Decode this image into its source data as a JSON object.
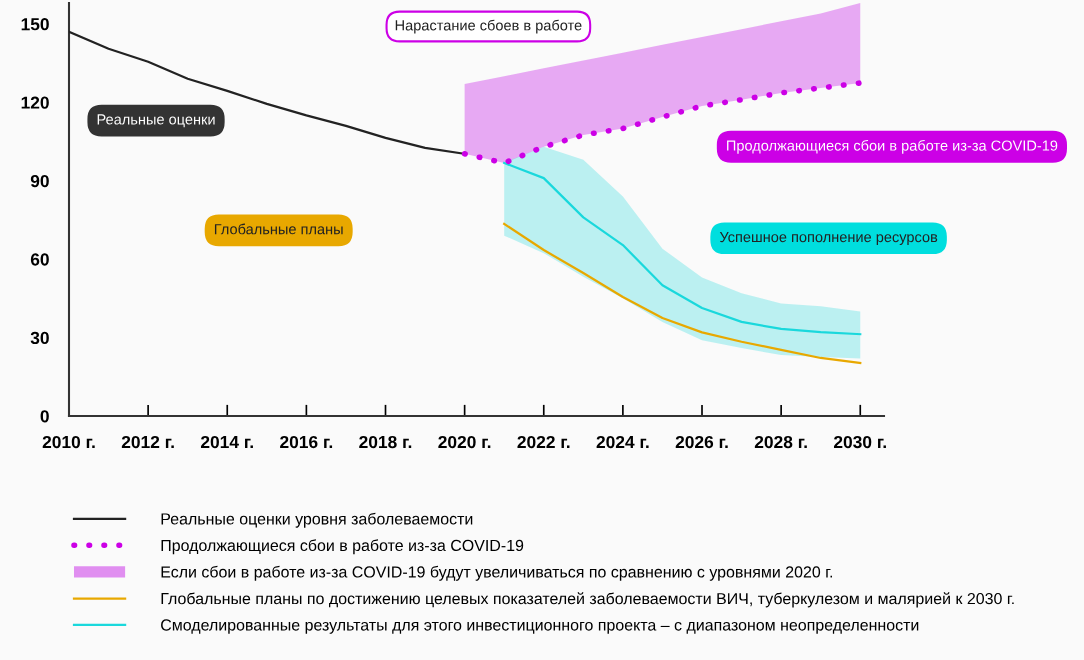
{
  "chart_data": {
    "type": "line",
    "x": [
      2010,
      2011,
      2012,
      2013,
      2014,
      2015,
      2016,
      2017,
      2018,
      2019,
      2020
    ],
    "series": [
      {
        "name": "Реальные оценки уровня заболеваемости",
        "color": "#222222",
        "values": [
          147,
          140.5,
          135.5,
          129,
          124.4,
          119.4,
          115,
          111,
          106.4,
          102.6,
          100.3
        ]
      },
      {
        "name": "Продолжающиеся сбои в работе из-за COVID-19",
        "color": "#cc00e6",
        "line_style": "dotted",
        "x": [
          2020,
          2021,
          2022,
          2023,
          2024,
          2025,
          2026,
          2027,
          2028,
          2029,
          2030
        ],
        "values": [
          100.3,
          96.8,
          103,
          107.5,
          110,
          114.4,
          118.6,
          121,
          123.6,
          125.5,
          127.4
        ]
      },
      {
        "name": "Если сбои в работе из-за COVID-19 будут увеличиваться по сравнению с уровнями 2020 г.",
        "type": "area",
        "color": "#e08ef0",
        "x": [
          2020,
          2021,
          2022,
          2023,
          2024,
          2025,
          2026,
          2027,
          2028,
          2029,
          2030
        ],
        "values": [
          127,
          130,
          133,
          136,
          139,
          142,
          145,
          148,
          151,
          154,
          158
        ]
      },
      {
        "name": "Глобальные планы по достижению целевых показателей заболеваемости ВИЧ, туберкулезом и малярией к 2030 г.",
        "color": "#e8a800",
        "x": [
          2021,
          2022,
          2023,
          2024,
          2025,
          2026,
          2027,
          2028,
          2029,
          2030
        ],
        "values": [
          73.5,
          63.5,
          54.7,
          45.5,
          37.5,
          32,
          28.4,
          25.3,
          22.2,
          20.3
        ]
      },
      {
        "name": "Смоделированные результаты для этого инвестиционного проекта – с диапазоном неопределенности",
        "color": "#1ad8dc",
        "x": [
          2021,
          2022,
          2023,
          2024,
          2025,
          2026,
          2027,
          2028,
          2029,
          2030
        ],
        "values": [
          96.8,
          91,
          76,
          65.4,
          50,
          41.3,
          36,
          33.3,
          32.1,
          31.3
        ],
        "lower": [
          69,
          62.3,
          53.3,
          45,
          36,
          29,
          26,
          23.3,
          22.6,
          22
        ],
        "upper": [
          97,
          103,
          98,
          84,
          64,
          53,
          47,
          43,
          42,
          40
        ]
      }
    ],
    "annotations": [
      "Нарастание сбоев в работе",
      "Реальные оценки",
      "Продолжающиеся сбои в работе из-за COVID-19",
      "Глобальные планы",
      "Успешное пополнение ресурсов"
    ],
    "xlim": [
      2010,
      2030.6
    ],
    "ylim": [
      0,
      158
    ],
    "xticks": [
      {
        "value": 2010,
        "label": "2010 г."
      },
      {
        "value": 2012,
        "label": "2012 г."
      },
      {
        "value": 2014,
        "label": "2014 г."
      },
      {
        "value": 2016,
        "label": "2016 г."
      },
      {
        "value": 2018,
        "label": "2018 г."
      },
      {
        "value": 2020,
        "label": "2020 г."
      },
      {
        "value": 2022,
        "label": "2022 г."
      },
      {
        "value": 2024,
        "label": "2024 г."
      },
      {
        "value": 2026,
        "label": "2026 г."
      },
      {
        "value": 2028,
        "label": "2028 г."
      },
      {
        "value": 2030,
        "label": "2030 г."
      }
    ],
    "yticks": [
      0,
      30,
      60,
      90,
      120,
      150
    ],
    "grid": false,
    "legend": "bottom"
  }
}
